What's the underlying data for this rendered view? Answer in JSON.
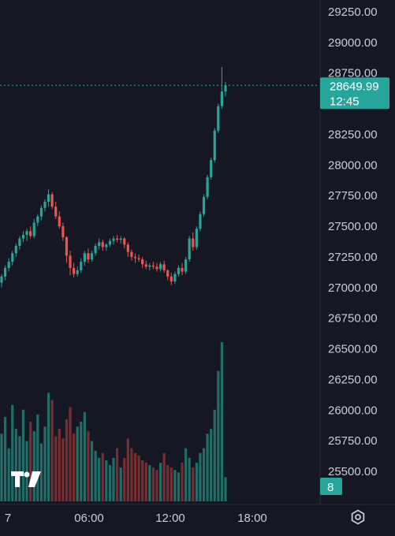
{
  "chart_data": {
    "type": "candlestick",
    "title": "",
    "colors": {
      "up": "#26a69a",
      "down": "#ef5350",
      "up_volume": "#1f6f68",
      "down_volume": "#7a2d31",
      "badge": "#26a69a",
      "background": "#151822"
    },
    "price_axis": {
      "ticks": [
        "29250.00",
        "29000.00",
        "28750.00",
        "28250.00",
        "28000.00",
        "27750.00",
        "27500.00",
        "27250.00",
        "27000.00",
        "26750.00",
        "26500.00",
        "26250.00",
        "26000.00",
        "25750.00",
        "25500.00"
      ],
      "ylim": [
        25400,
        29300
      ]
    },
    "time_axis": {
      "ticks": [
        "7",
        "06:00",
        "12:00",
        "18:00"
      ]
    },
    "last_price": {
      "price": "28649.99",
      "countdown": "12:45"
    },
    "volume_badge": "8",
    "logo": "TV",
    "settings_icon": "gear-icon",
    "grid": false,
    "candles": [
      [
        27040,
        27110,
        27000,
        27090
      ],
      [
        27090,
        27180,
        27060,
        27160
      ],
      [
        27160,
        27240,
        27130,
        27210
      ],
      [
        27210,
        27300,
        27180,
        27280
      ],
      [
        27280,
        27360,
        27250,
        27340
      ],
      [
        27340,
        27420,
        27310,
        27400
      ],
      [
        27400,
        27460,
        27370,
        27430
      ],
      [
        27430,
        27480,
        27380,
        27460
      ],
      [
        27460,
        27500,
        27400,
        27420
      ],
      [
        27420,
        27560,
        27400,
        27530
      ],
      [
        27530,
        27600,
        27500,
        27580
      ],
      [
        27580,
        27670,
        27550,
        27650
      ],
      [
        27650,
        27720,
        27620,
        27700
      ],
      [
        27700,
        27800,
        27660,
        27760
      ],
      [
        27760,
        27780,
        27640,
        27660
      ],
      [
        27660,
        27700,
        27560,
        27580
      ],
      [
        27580,
        27620,
        27480,
        27500
      ],
      [
        27500,
        27530,
        27380,
        27410
      ],
      [
        27410,
        27420,
        27200,
        27260
      ],
      [
        27260,
        27300,
        27100,
        27160
      ],
      [
        27160,
        27200,
        27080,
        27110
      ],
      [
        27110,
        27170,
        27090,
        27140
      ],
      [
        27140,
        27240,
        27120,
        27210
      ],
      [
        27210,
        27300,
        27180,
        27280
      ],
      [
        27280,
        27320,
        27200,
        27230
      ],
      [
        27230,
        27300,
        27210,
        27280
      ],
      [
        27280,
        27360,
        27260,
        27340
      ],
      [
        27340,
        27400,
        27310,
        27370
      ],
      [
        27370,
        27390,
        27300,
        27330
      ],
      [
        27330,
        27360,
        27300,
        27350
      ],
      [
        27350,
        27400,
        27330,
        27380
      ],
      [
        27380,
        27420,
        27350,
        27400
      ],
      [
        27400,
        27430,
        27370,
        27390
      ],
      [
        27390,
        27420,
        27360,
        27400
      ],
      [
        27400,
        27410,
        27320,
        27350
      ],
      [
        27350,
        27370,
        27250,
        27290
      ],
      [
        27290,
        27310,
        27220,
        27250
      ],
      [
        27250,
        27280,
        27200,
        27240
      ],
      [
        27240,
        27270,
        27210,
        27230
      ],
      [
        27230,
        27250,
        27160,
        27190
      ],
      [
        27190,
        27220,
        27150,
        27170
      ],
      [
        27170,
        27200,
        27140,
        27180
      ],
      [
        27180,
        27210,
        27150,
        27170
      ],
      [
        27170,
        27200,
        27130,
        27150
      ],
      [
        27150,
        27210,
        27130,
        27190
      ],
      [
        27190,
        27220,
        27120,
        27140
      ],
      [
        27140,
        27150,
        27060,
        27090
      ],
      [
        27090,
        27120,
        27020,
        27050
      ],
      [
        27050,
        27130,
        27030,
        27110
      ],
      [
        27110,
        27180,
        27090,
        27160
      ],
      [
        27160,
        27200,
        27100,
        27130
      ],
      [
        27130,
        27250,
        27110,
        27230
      ],
      [
        27230,
        27420,
        27210,
        27400
      ],
      [
        27400,
        27450,
        27300,
        27330
      ],
      [
        27330,
        27500,
        27310,
        27480
      ],
      [
        27480,
        27620,
        27460,
        27600
      ],
      [
        27600,
        27760,
        27580,
        27740
      ],
      [
        27740,
        27920,
        27720,
        27900
      ],
      [
        27900,
        28060,
        27880,
        28040
      ],
      [
        28040,
        28300,
        28020,
        28280
      ],
      [
        28280,
        28500,
        28260,
        28480
      ],
      [
        28480,
        28800,
        28460,
        28600
      ],
      [
        28600,
        28680,
        28560,
        28649.99
      ]
    ],
    "volumes": [
      28,
      35,
      22,
      40,
      30,
      27,
      38,
      25,
      33,
      29,
      36,
      24,
      31,
      45,
      42,
      27,
      30,
      26,
      34,
      39,
      28,
      31,
      33,
      37,
      29,
      25,
      21,
      18,
      20,
      17,
      15,
      18,
      22,
      14,
      18,
      26,
      22,
      20,
      19,
      17,
      16,
      15,
      14,
      13,
      16,
      20,
      15,
      14,
      13,
      12,
      16,
      22,
      18,
      14,
      16,
      20,
      22,
      28,
      30,
      38,
      54,
      66,
      10
    ]
  }
}
